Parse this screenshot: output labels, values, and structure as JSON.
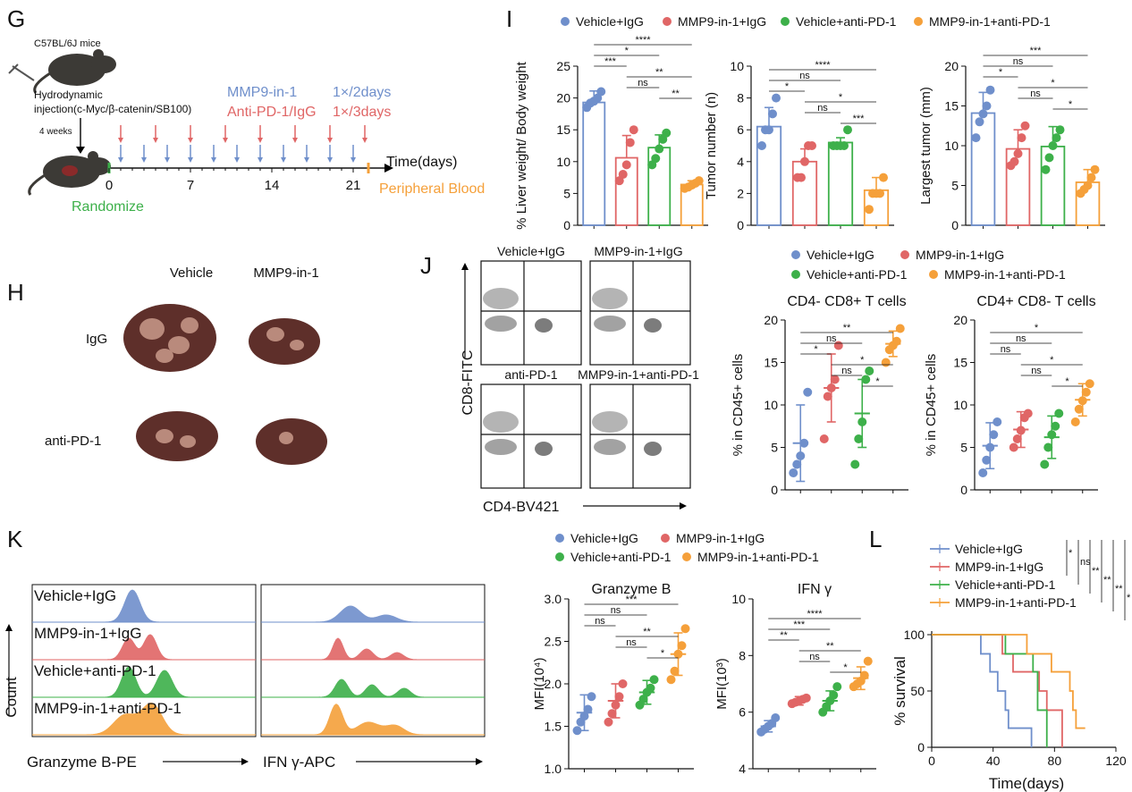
{
  "colors": {
    "blue": "#6f8fcb",
    "red": "#e06666",
    "green": "#3db04a",
    "orange": "#f5a03a",
    "axis": "#111111"
  },
  "panel_letters": {
    "G": "G",
    "H": "H",
    "I": "I",
    "J": "J",
    "K": "K",
    "L": "L"
  },
  "groups": [
    "Vehicle+IgG",
    "MMP9-in-1+IgG",
    "Vehicle+anti-PD-1",
    "MMP9-in-1+anti-PD-1"
  ],
  "panel_g": {
    "mouse_label": "C57BL/6J mice",
    "injection_label": "Hydrodynamic",
    "injection_detail": "injection(c-Myc/β-catenin/SB100)",
    "weeks": "4 weeks",
    "drug1": "MMP9-in-1",
    "drug2": "Anti-PD-1/IgG",
    "freq1": "1×/2days",
    "freq2": "1×/3days",
    "time_label": "Time(days)",
    "ticks": [
      "0",
      "7",
      "14",
      "21"
    ],
    "randomize": "Randomize",
    "blood": "Peripheral Blood",
    "blue_arrow_days": [
      1,
      3,
      5,
      7,
      9,
      11,
      13,
      15,
      17,
      19,
      21
    ],
    "red_arrow_days": [
      1,
      4,
      7,
      10,
      13,
      16,
      19,
      22
    ]
  },
  "panel_h": {
    "col_labels": [
      "Vehicle",
      "MMP9-in-1"
    ],
    "row_labels": [
      "IgG",
      "anti-PD-1"
    ]
  },
  "panel_j_flow": {
    "labels": [
      "Vehicle+IgG",
      "MMP9-in-1+IgG",
      "anti-PD-1",
      "MMP9-in-1+anti-PD-1"
    ],
    "y_axis": "CD8-FITC",
    "x_axis": "CD4-BV421"
  },
  "panel_k_hist": {
    "rows": [
      "Vehicle+IgG",
      "MMP9-in-1+IgG",
      "Vehicle+anti-PD-1",
      "MMP9-in-1+anti-PD-1"
    ],
    "y_axis": "Count",
    "x_axis1": "Granzyme B-PE",
    "x_axis2": "IFN γ-APC"
  },
  "chart_data": [
    {
      "type": "bar",
      "panel": "I",
      "ylabel": "% Liver weight/ Body weight",
      "ylim": [
        0,
        25
      ],
      "yticks": [
        "0",
        "5",
        "10",
        "15",
        "20",
        "25"
      ],
      "categories": [
        "Vehicle+IgG",
        "MMP9-in-1+IgG",
        "Vehicle+anti-PD-1",
        "MMP9-in-1+anti-PD-1"
      ],
      "values": [
        19.3,
        10.6,
        12.2,
        6.4
      ],
      "errors": [
        1.8,
        3.5,
        2.0,
        0.6
      ],
      "points": [
        [
          18.5,
          19.2,
          19.5,
          20.0,
          21.0
        ],
        [
          7.0,
          8.0,
          9.5,
          13.0,
          15.0
        ],
        [
          9.5,
          10.5,
          12.0,
          13.5,
          14.5
        ],
        [
          5.8,
          6.0,
          6.3,
          6.6,
          7.0
        ]
      ],
      "sig": [
        {
          "from": 0,
          "to": 1,
          "label": "***"
        },
        {
          "from": 0,
          "to": 2,
          "label": "*"
        },
        {
          "from": 0,
          "to": 3,
          "label": "****"
        },
        {
          "from": 1,
          "to": 2,
          "label": "ns"
        },
        {
          "from": 1,
          "to": 3,
          "label": "**"
        },
        {
          "from": 2,
          "to": 3,
          "label": "**"
        }
      ]
    },
    {
      "type": "bar",
      "panel": "I",
      "ylabel": "Tumor number (n)",
      "ylim": [
        0,
        10
      ],
      "yticks": [
        "0",
        "2",
        "4",
        "6",
        "8",
        "10"
      ],
      "categories": [
        "Vehicle+IgG",
        "MMP9-in-1+IgG",
        "Vehicle+anti-PD-1",
        "MMP9-in-1+anti-PD-1"
      ],
      "values": [
        6.2,
        4.0,
        5.2,
        2.2
      ],
      "errors": [
        1.2,
        0.8,
        0.3,
        0.8
      ],
      "points": [
        [
          5.0,
          6.0,
          6.0,
          7.0,
          8.0
        ],
        [
          3.0,
          3.0,
          4.0,
          5.0,
          5.0
        ],
        [
          5.0,
          5.0,
          5.0,
          5.0,
          6.0
        ],
        [
          1.0,
          2.0,
          2.0,
          2.0,
          3.0
        ]
      ],
      "sig": [
        {
          "from": 0,
          "to": 1,
          "label": "*"
        },
        {
          "from": 0,
          "to": 2,
          "label": "ns"
        },
        {
          "from": 0,
          "to": 3,
          "label": "****"
        },
        {
          "from": 1,
          "to": 2,
          "label": "ns"
        },
        {
          "from": 1,
          "to": 3,
          "label": "*"
        },
        {
          "from": 2,
          "to": 3,
          "label": "***"
        }
      ]
    },
    {
      "type": "bar",
      "panel": "I",
      "ylabel": "Largest tumor (mm)",
      "ylim": [
        0,
        20
      ],
      "yticks": [
        "0",
        "5",
        "10",
        "15",
        "20"
      ],
      "categories": [
        "Vehicle+IgG",
        "MMP9-in-1+IgG",
        "Vehicle+anti-PD-1",
        "MMP9-in-1+anti-PD-1"
      ],
      "values": [
        14.1,
        9.6,
        9.9,
        5.4
      ],
      "errors": [
        2.6,
        2.4,
        2.5,
        1.6
      ],
      "points": [
        [
          11.0,
          13.0,
          14.0,
          15.0,
          17.0
        ],
        [
          7.5,
          8.0,
          9.0,
          11.0,
          12.5
        ],
        [
          7.0,
          8.5,
          10.0,
          11.0,
          12.0
        ],
        [
          4.0,
          4.5,
          5.0,
          6.0,
          7.0
        ]
      ],
      "sig": [
        {
          "from": 0,
          "to": 1,
          "label": "*"
        },
        {
          "from": 0,
          "to": 2,
          "label": "ns"
        },
        {
          "from": 0,
          "to": 3,
          "label": "***"
        },
        {
          "from": 1,
          "to": 2,
          "label": "ns"
        },
        {
          "from": 1,
          "to": 3,
          "label": "*"
        },
        {
          "from": 2,
          "to": 3,
          "label": "*"
        }
      ]
    },
    {
      "type": "scatter",
      "panel": "J",
      "title": "CD4- CD8+ T cells",
      "ylabel": "% in CD45+ cells",
      "ylim": [
        0,
        20
      ],
      "yticks": [
        "0",
        "5",
        "10",
        "15",
        "20"
      ],
      "categories": [
        "Vehicle+IgG",
        "MMP9-in-1+IgG",
        "Vehicle+anti-PD-1",
        "MMP9-in-1+anti-PD-1"
      ],
      "values": [
        5.5,
        12.0,
        9.0,
        17.2
      ],
      "errors": [
        4.5,
        4.0,
        4.0,
        1.5
      ],
      "points": [
        [
          2.0,
          3.0,
          4.0,
          5.5,
          11.5
        ],
        [
          6.0,
          11.0,
          12.0,
          13.0,
          17.0
        ],
        [
          3.0,
          6.0,
          8.0,
          13.0,
          14.0
        ],
        [
          15.0,
          16.5,
          17.0,
          17.5,
          19.0
        ]
      ],
      "sig": [
        {
          "from": 0,
          "to": 1,
          "label": "*"
        },
        {
          "from": 0,
          "to": 2,
          "label": "ns"
        },
        {
          "from": 0,
          "to": 3,
          "label": "**"
        },
        {
          "from": 1,
          "to": 2,
          "label": "ns"
        },
        {
          "from": 1,
          "to": 3,
          "label": "*"
        },
        {
          "from": 2,
          "to": 3,
          "label": "*"
        }
      ]
    },
    {
      "type": "scatter",
      "panel": "J",
      "title": "CD4+ CD8- T cells",
      "ylabel": "% in CD45+ cells",
      "ylim": [
        0,
        20
      ],
      "yticks": [
        "0",
        "5",
        "10",
        "15",
        "20"
      ],
      "categories": [
        "Vehicle+IgG",
        "MMP9-in-1+IgG",
        "Vehicle+anti-PD-1",
        "MMP9-in-1+anti-PD-1"
      ],
      "values": [
        5.2,
        7.1,
        6.2,
        10.6
      ],
      "errors": [
        2.7,
        2.1,
        2.5,
        1.9
      ],
      "points": [
        [
          2.0,
          3.5,
          5.0,
          6.5,
          8.0
        ],
        [
          5.0,
          6.0,
          7.0,
          8.5,
          9.0
        ],
        [
          3.0,
          5.0,
          6.5,
          7.5,
          9.0
        ],
        [
          8.0,
          9.5,
          10.5,
          11.5,
          12.5
        ]
      ],
      "sig": [
        {
          "from": 0,
          "to": 1,
          "label": "ns"
        },
        {
          "from": 0,
          "to": 2,
          "label": "ns"
        },
        {
          "from": 0,
          "to": 3,
          "label": "*"
        },
        {
          "from": 1,
          "to": 2,
          "label": "ns"
        },
        {
          "from": 1,
          "to": 3,
          "label": "*"
        },
        {
          "from": 2,
          "to": 3,
          "label": "*"
        }
      ]
    },
    {
      "type": "scatter",
      "panel": "K",
      "title": "Granzyme B",
      "ylabel": "MFI(10⁴)",
      "ylim": [
        1.0,
        3.0
      ],
      "yticks": [
        "1.0",
        "1.5",
        "2.0",
        "2.5",
        "3.0"
      ],
      "categories": [
        "Vehicle+IgG",
        "MMP9-in-1+IgG",
        "Vehicle+anti-PD-1",
        "MMP9-in-1+anti-PD-1"
      ],
      "values": [
        1.66,
        1.8,
        1.9,
        2.35
      ],
      "errors": [
        0.21,
        0.2,
        0.14,
        0.25
      ],
      "points": [
        [
          1.45,
          1.55,
          1.62,
          1.7,
          1.85
        ],
        [
          1.55,
          1.65,
          1.75,
          1.85,
          2.0
        ],
        [
          1.75,
          1.82,
          1.9,
          1.95,
          2.05
        ],
        [
          2.05,
          2.15,
          2.35,
          2.45,
          2.65
        ]
      ],
      "sig": [
        {
          "from": 0,
          "to": 1,
          "label": "ns"
        },
        {
          "from": 0,
          "to": 2,
          "label": "ns"
        },
        {
          "from": 0,
          "to": 3,
          "label": "***"
        },
        {
          "from": 1,
          "to": 2,
          "label": "ns"
        },
        {
          "from": 1,
          "to": 3,
          "label": "**"
        },
        {
          "from": 2,
          "to": 3,
          "label": "*"
        }
      ]
    },
    {
      "type": "scatter",
      "panel": "K",
      "title": "IFN γ",
      "ylabel": "MFI(10³)",
      "ylim": [
        4,
        10
      ],
      "yticks": [
        "4",
        "6",
        "8",
        "10"
      ],
      "categories": [
        "Vehicle+IgG",
        "MMP9-in-1+IgG",
        "Vehicle+anti-PD-1",
        "MMP9-in-1+anti-PD-1"
      ],
      "values": [
        5.5,
        6.4,
        6.4,
        7.2
      ],
      "errors": [
        0.2,
        0.15,
        0.35,
        0.4
      ],
      "points": [
        [
          5.3,
          5.4,
          5.5,
          5.6,
          5.8
        ],
        [
          6.3,
          6.35,
          6.4,
          6.45,
          6.5
        ],
        [
          6.0,
          6.2,
          6.4,
          6.6,
          6.9
        ],
        [
          6.9,
          7.0,
          7.1,
          7.3,
          7.8
        ]
      ],
      "sig": [
        {
          "from": 0,
          "to": 1,
          "label": "**"
        },
        {
          "from": 0,
          "to": 2,
          "label": "***"
        },
        {
          "from": 0,
          "to": 3,
          "label": "****"
        },
        {
          "from": 1,
          "to": 2,
          "label": "ns"
        },
        {
          "from": 1,
          "to": 3,
          "label": "**"
        },
        {
          "from": 2,
          "to": 3,
          "label": "*"
        }
      ]
    },
    {
      "type": "line",
      "panel": "L",
      "xlabel": "Time(days)",
      "ylabel": "% survival",
      "xlim": [
        0,
        120
      ],
      "ylim": [
        0,
        100
      ],
      "xticks": [
        "0",
        "40",
        "80",
        "120"
      ],
      "yticks": [
        "0",
        "50",
        "100"
      ],
      "series": [
        {
          "name": "Vehicle+IgG",
          "steps": [
            [
              0,
              100
            ],
            [
              32,
              100
            ],
            [
              32,
              83
            ],
            [
              38,
              83
            ],
            [
              38,
              67
            ],
            [
              43,
              67
            ],
            [
              43,
              50
            ],
            [
              48,
              50
            ],
            [
              48,
              33
            ],
            [
              50,
              33
            ],
            [
              50,
              17
            ],
            [
              65,
              17
            ],
            [
              65,
              0
            ]
          ]
        },
        {
          "name": "MMP9-in-1+IgG",
          "steps": [
            [
              0,
              100
            ],
            [
              46,
              100
            ],
            [
              46,
              83
            ],
            [
              53,
              83
            ],
            [
              53,
              67
            ],
            [
              70,
              67
            ],
            [
              70,
              50
            ],
            [
              75,
              50
            ],
            [
              75,
              33
            ],
            [
              85,
              33
            ],
            [
              85,
              0
            ]
          ]
        },
        {
          "name": "Vehicle+anti-PD-1",
          "steps": [
            [
              0,
              100
            ],
            [
              48,
              100
            ],
            [
              48,
              83
            ],
            [
              66,
              83
            ],
            [
              66,
              67
            ],
            [
              69,
              67
            ],
            [
              69,
              33
            ],
            [
              75,
              33
            ],
            [
              75,
              0
            ]
          ]
        },
        {
          "name": "MMP9-in-1+anti-PD-1",
          "steps": [
            [
              0,
              100
            ],
            [
              62,
              100
            ],
            [
              62,
              83
            ],
            [
              78,
              83
            ],
            [
              78,
              67
            ],
            [
              90,
              67
            ],
            [
              90,
              50
            ],
            [
              92,
              50
            ],
            [
              92,
              33
            ],
            [
              94,
              33
            ],
            [
              94,
              17
            ],
            [
              100,
              17
            ]
          ]
        }
      ],
      "sig_labels": [
        "*",
        "ns",
        "**",
        "**",
        "**",
        "*"
      ]
    }
  ]
}
